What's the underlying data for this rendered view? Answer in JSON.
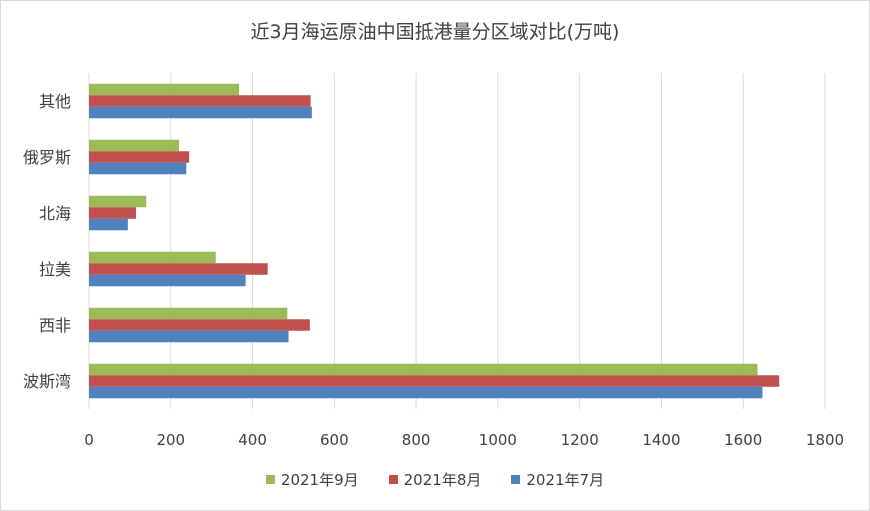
{
  "chart_data": {
    "type": "bar",
    "orientation": "horizontal",
    "title": "近3月海运原油中国抵港量分区域对比(万吨)",
    "categories": [
      "波斯湾",
      "西非",
      "拉美",
      "北海",
      "俄罗斯",
      "其他"
    ],
    "series": [
      {
        "name": "2021年9月",
        "color": "#9bbb59",
        "values": [
          1635,
          485,
          310,
          140,
          220,
          367
        ]
      },
      {
        "name": "2021年8月",
        "color": "#c0504d",
        "values": [
          1688,
          540,
          437,
          115,
          245,
          542
        ]
      },
      {
        "name": "2021年7月",
        "color": "#4f81bd",
        "values": [
          1647,
          488,
          383,
          95,
          238,
          545
        ]
      }
    ],
    "xlim": [
      0,
      1800
    ],
    "xticks": [
      0,
      200,
      400,
      600,
      800,
      1000,
      1200,
      1400,
      1600,
      1800
    ],
    "grid": true,
    "legend_position": "bottom"
  }
}
